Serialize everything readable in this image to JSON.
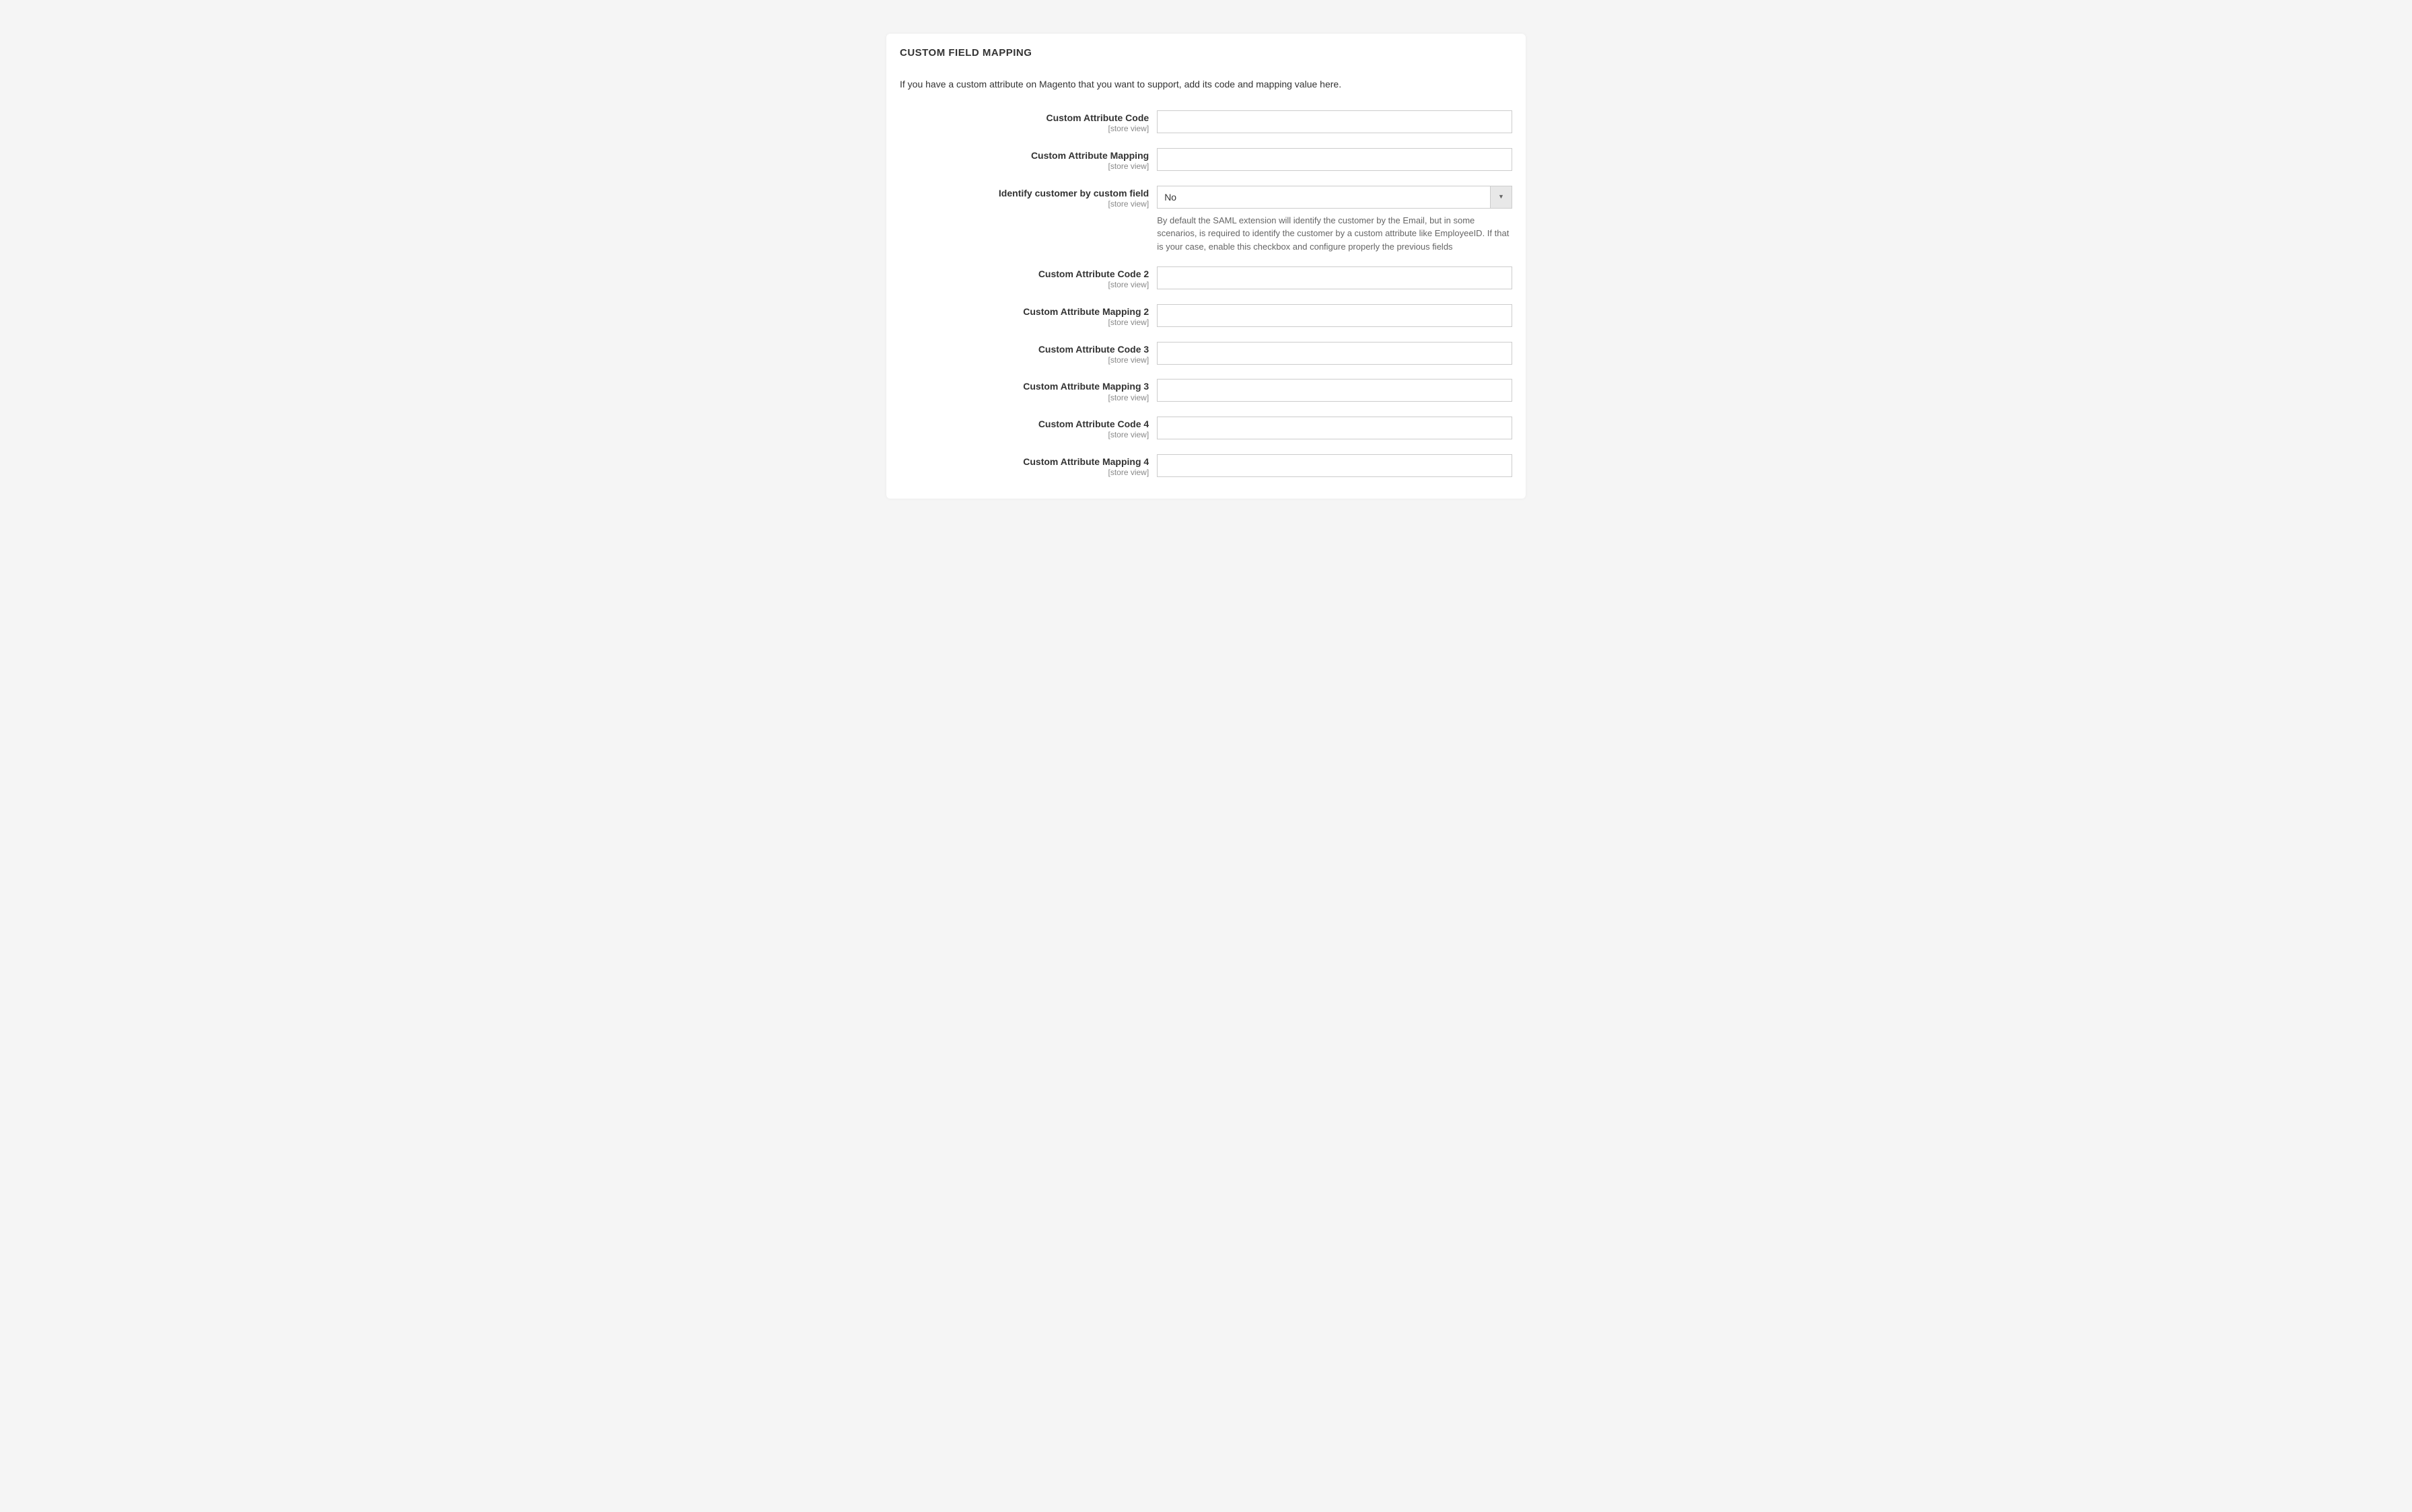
{
  "panel": {
    "title": "CUSTOM FIELD MAPPING",
    "description": "If you have a custom attribute on Magento that you want to support, add its code and mapping value here.",
    "scope_label": "[store view]"
  },
  "fields": {
    "custom_attr_code": {
      "label": "Custom Attribute Code",
      "value": ""
    },
    "custom_attr_mapping": {
      "label": "Custom Attribute Mapping",
      "value": ""
    },
    "identify_by_custom": {
      "label": "Identify customer by custom field",
      "selected": "No",
      "help": "By default the SAML extension will identify the customer by the Email, but in some scenarios, is required to identify the customer by a custom attribute like EmployeeID. If that is your case, enable this checkbox and configure properly the previous fields"
    },
    "custom_attr_code_2": {
      "label": "Custom Attribute Code 2",
      "value": ""
    },
    "custom_attr_mapping_2": {
      "label": "Custom Attribute Mapping 2",
      "value": ""
    },
    "custom_attr_code_3": {
      "label": "Custom Attribute Code 3",
      "value": ""
    },
    "custom_attr_mapping_3": {
      "label": "Custom Attribute Mapping 3",
      "value": ""
    },
    "custom_attr_code_4": {
      "label": "Custom Attribute Code 4",
      "value": ""
    },
    "custom_attr_mapping_4": {
      "label": "Custom Attribute Mapping 4",
      "value": ""
    }
  }
}
